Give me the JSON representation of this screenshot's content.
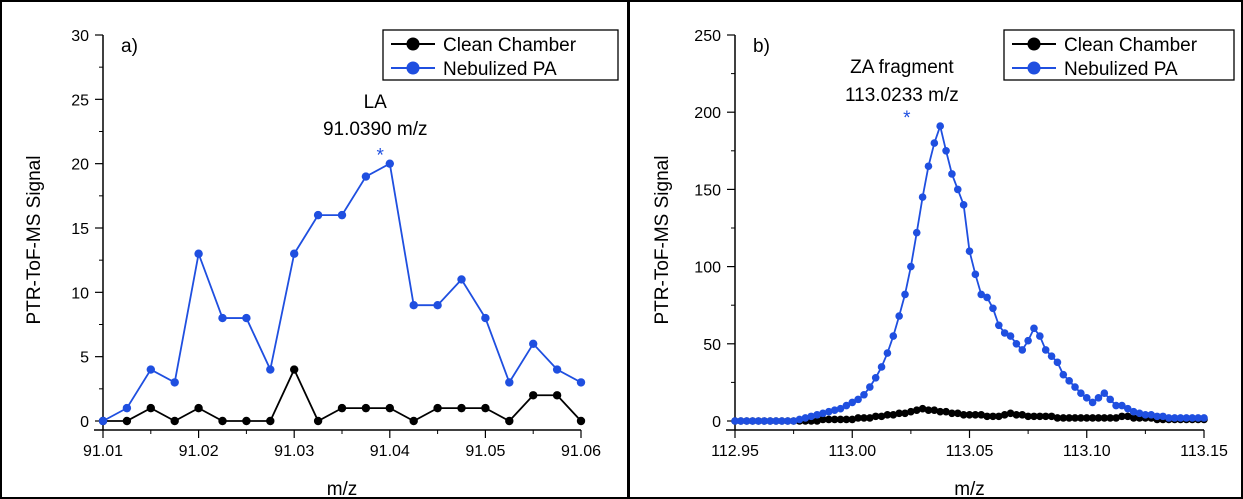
{
  "colors": {
    "clean": "#000000",
    "nebulized": "#1f4fe0"
  },
  "chart_data": [
    {
      "type": "line",
      "panel_label": "a)",
      "ylabel": "PTR-ToF-MS Signal",
      "xlabel": "m/z",
      "xlim": [
        91.01,
        91.06
      ],
      "ylim": [
        0,
        30
      ],
      "xticks": [
        "91.01",
        "91.02",
        "91.03",
        "91.04",
        "91.05",
        "91.06"
      ],
      "yticks": [
        "0",
        "5",
        "10",
        "15",
        "20",
        "25",
        "30"
      ],
      "legend_position": "top-right",
      "annotation": {
        "name": "LA",
        "mz": "91.0390 m/z",
        "marker": "*",
        "x": 91.039
      },
      "x": [
        91.01,
        91.0125,
        91.015,
        91.0175,
        91.02,
        91.0225,
        91.025,
        91.0275,
        91.03,
        91.0325,
        91.035,
        91.0375,
        91.04,
        91.0425,
        91.045,
        91.0475,
        91.05,
        91.0525,
        91.055,
        91.0575,
        91.06
      ],
      "series": [
        {
          "name": "Clean Chamber",
          "color": "#000000",
          "values": [
            0,
            0,
            1,
            0,
            1,
            0,
            0,
            0,
            4,
            0,
            1,
            1,
            1,
            0,
            1,
            1,
            1,
            0,
            2,
            2,
            0
          ]
        },
        {
          "name": "Nebulized PA",
          "color": "#1f4fe0",
          "values": [
            0,
            1,
            4,
            3,
            13,
            8,
            8,
            4,
            13,
            16,
            16,
            19,
            20,
            9,
            9,
            11,
            8,
            3,
            6,
            4,
            3
          ]
        }
      ]
    },
    {
      "type": "line",
      "panel_label": "b)",
      "ylabel": "PTR-ToF-MS Signal",
      "xlabel": "m/z",
      "xlim": [
        112.95,
        113.15
      ],
      "ylim": [
        0,
        250
      ],
      "xticks": [
        "112.95",
        "113.00",
        "113.05",
        "113.10",
        "113.15"
      ],
      "yticks": [
        "0",
        "50",
        "100",
        "150",
        "200",
        "250"
      ],
      "legend_position": "top-right",
      "annotation": {
        "name": "ZA fragment",
        "mz": "113.0233 m/z",
        "marker": "*",
        "x": 113.0233
      },
      "x_start": 112.95,
      "x_step": 0.0025,
      "series": [
        {
          "name": "Clean Chamber",
          "color": "#000000",
          "values": [
            0,
            0,
            0,
            0,
            0,
            0,
            0,
            0,
            0,
            0,
            0,
            0,
            0,
            0,
            0,
            1,
            1,
            1,
            1,
            1,
            1,
            2,
            2,
            2,
            3,
            3,
            4,
            4,
            5,
            5,
            6,
            7,
            8,
            7,
            7,
            6,
            6,
            5,
            5,
            4,
            4,
            4,
            4,
            3,
            3,
            3,
            4,
            5,
            4,
            4,
            3,
            3,
            3,
            3,
            3,
            2,
            2,
            2,
            2,
            2,
            2,
            2,
            2,
            2,
            2,
            2,
            3,
            3,
            2,
            2,
            2,
            2,
            1,
            1,
            1,
            1,
            1,
            1,
            1,
            1,
            1
          ]
        },
        {
          "name": "Nebulized PA",
          "color": "#1f4fe0",
          "values": [
            0,
            0,
            0,
            0,
            0,
            0,
            0,
            0,
            0,
            0,
            0,
            1,
            2,
            3,
            4,
            5,
            6,
            7,
            8,
            10,
            12,
            14,
            17,
            22,
            28,
            35,
            44,
            55,
            68,
            82,
            100,
            122,
            145,
            165,
            180,
            191,
            175,
            160,
            150,
            140,
            110,
            95,
            82,
            80,
            73,
            62,
            57,
            55,
            50,
            46,
            52,
            60,
            55,
            46,
            42,
            38,
            30,
            26,
            22,
            18,
            15,
            12,
            15,
            18,
            14,
            10,
            10,
            8,
            6,
            5,
            4,
            4,
            3,
            3,
            2,
            2,
            2,
            2,
            2,
            2,
            2
          ]
        }
      ]
    }
  ]
}
